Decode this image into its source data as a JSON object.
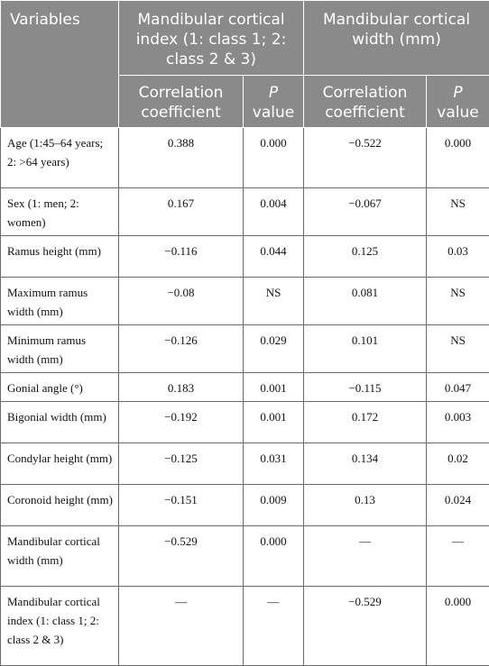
{
  "table": {
    "header": {
      "variables": "Variables",
      "group1": "Mandibular cortical index (1: class 1; 2: class 2 & 3)",
      "group2": "Mandibular cortical width (mm)",
      "corr1": "Correlation coefficient",
      "p1_letter": "P",
      "p1_rest": "value",
      "corr2": "Correlation coefficient",
      "p2_letter": "P",
      "p2_rest": "value"
    },
    "rows": [
      {
        "variable": "Age (1:45–64 years; 2: >64 years)",
        "r1": "0.388",
        "p1": "0.000",
        "r2": "−0.522",
        "p2": "0.000"
      },
      {
        "variable": "Sex (1: men; 2: women)",
        "r1": "0.167",
        "p1": "0.004",
        "r2": "−0.067",
        "p2": "NS"
      },
      {
        "variable": "Ramus height (mm)",
        "r1": "−0.116",
        "p1": "0.044",
        "r2": "0.125",
        "p2": "0.03"
      },
      {
        "variable": "Maximum ramus width (mm)",
        "r1": "−0.08",
        "p1": "NS",
        "r2": "0.081",
        "p2": "NS"
      },
      {
        "variable": "Minimum ramus width (mm)",
        "r1": "−0.126",
        "p1": "0.029",
        "r2": "0.101",
        "p2": "NS"
      },
      {
        "variable": "Gonial angle (°)",
        "r1": "0.183",
        "p1": "0.001",
        "r2": "−0.115",
        "p2": "0.047"
      },
      {
        "variable": "Bigonial width (mm)",
        "r1": "−0.192",
        "p1": "0.001",
        "r2": "0.172",
        "p2": "0.003"
      },
      {
        "variable": "Condylar height (mm)",
        "r1": "−0.125",
        "p1": "0.031",
        "r2": "0.134",
        "p2": "0.02"
      },
      {
        "variable": "Coronoid height (mm)",
        "r1": "−0.151",
        "p1": "0.009",
        "r2": "0.13",
        "p2": "0.024"
      },
      {
        "variable": "Mandibular cortical width (mm)",
        "r1": "−0.529",
        "p1": "0.000",
        "r2": "—",
        "p2": "—"
      },
      {
        "variable": "Mandibular cortical index (1: class 1; 2: class 2 & 3)",
        "r1": "—",
        "p1": "—",
        "r2": "−0.529",
        "p2": "0.000"
      }
    ]
  }
}
